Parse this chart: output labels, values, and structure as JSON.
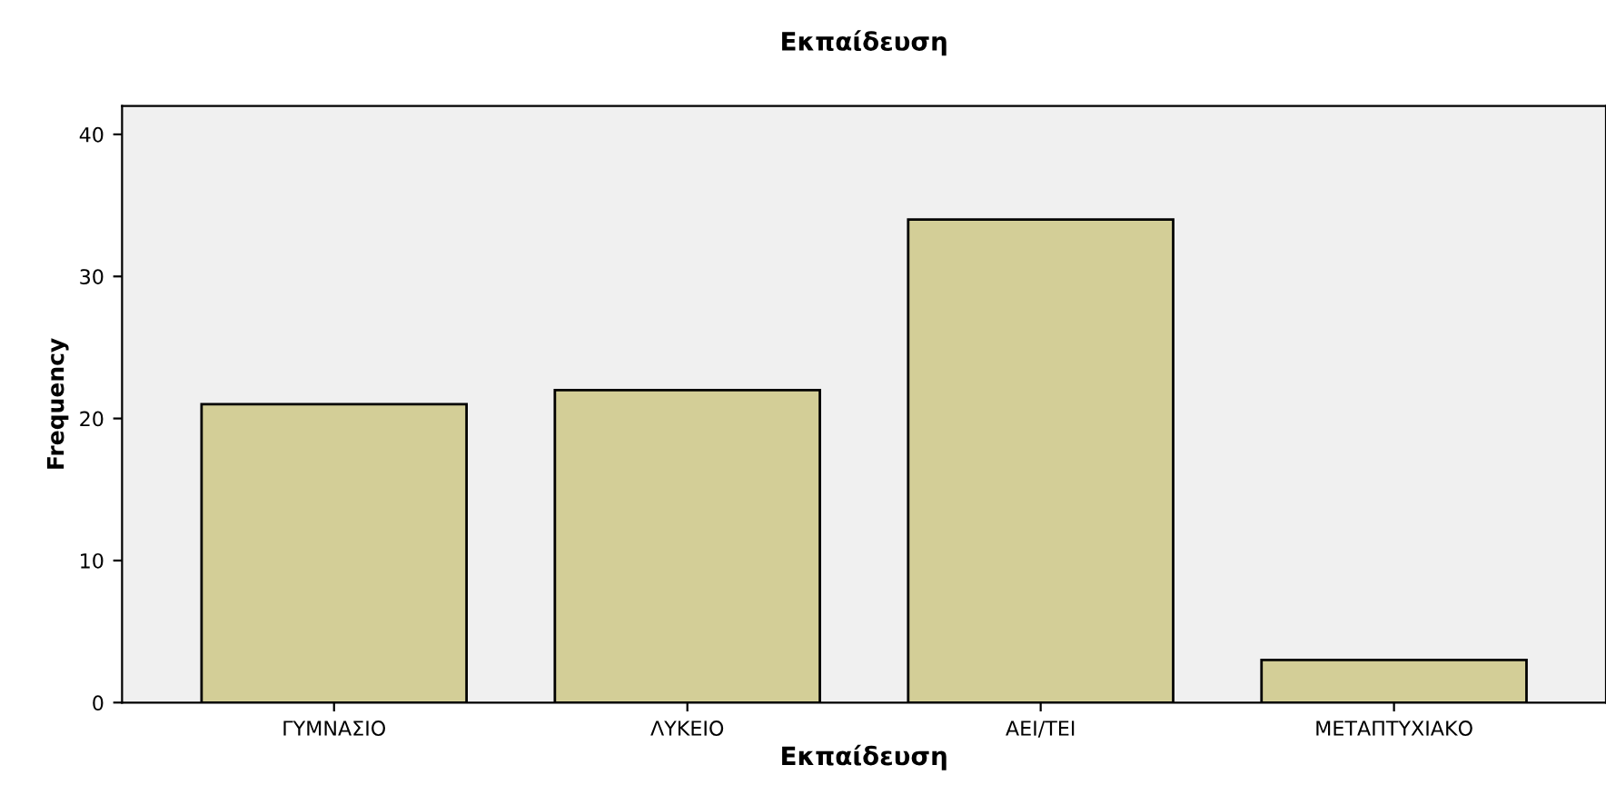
{
  "chart_data": {
    "type": "bar",
    "title": "Εκπαίδευση",
    "xlabel": "Εκπαίδευση",
    "ylabel": "Frequency",
    "categories": [
      "ΓΥΜΝΑΣΙΟ",
      "ΛΥΚΕΙΟ",
      "ΑΕΙ/ΤΕΙ",
      "ΜΕΤΑΠΤΥΧΙΑΚΟ"
    ],
    "values": [
      21,
      22,
      34,
      3
    ],
    "color": "#d3ce97",
    "ylim": [
      0,
      42
    ],
    "yticks": [
      0,
      10,
      20,
      30,
      40
    ],
    "grid": false,
    "legend": false
  }
}
